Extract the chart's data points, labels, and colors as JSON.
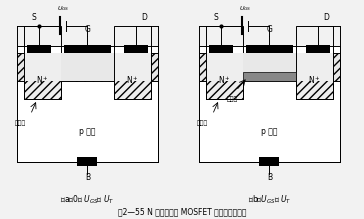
{
  "title": "图2—55 N 沟道增强型 MOSFET 导电沟道的形成",
  "caption_a": "（a）0＜ $U_{GS}$＜ $U_T$",
  "caption_b": "（b）$U_{GS}$＞ $U_T$",
  "bg_color": "#f2f2f2",
  "white": "#ffffff",
  "black": "#000000",
  "hatch_gray": "#d8d8d8",
  "channel_gray": "#aaaaaa"
}
